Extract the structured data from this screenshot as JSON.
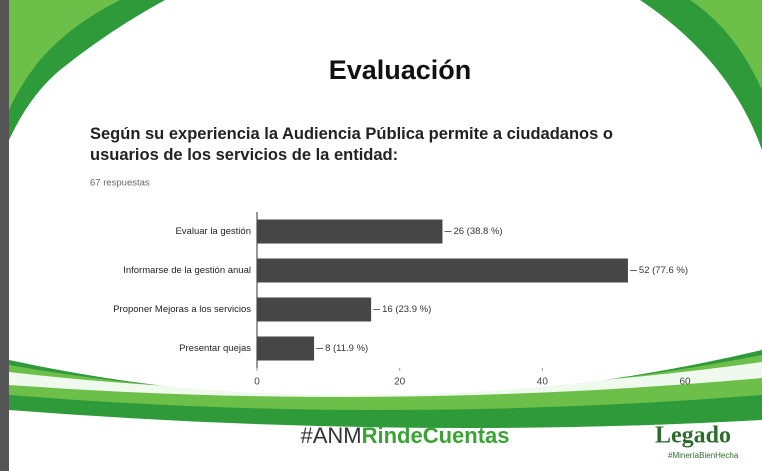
{
  "slide_title": "Evaluación",
  "question": "Según su experiencia la Audiencia Pública permite a ciudadanos o usuarios de los servicios de la entidad:",
  "responses": "67 respuestas",
  "chart_data": {
    "type": "hbar",
    "categories": [
      "Evaluar la gestión",
      "Informarse de la gestión anual",
      "Proponer Mejoras a los servicios",
      "Presentar quejas"
    ],
    "values": [
      26,
      52,
      16,
      8
    ],
    "value_labels": [
      "26 (38.8 %)",
      "52 (77.6 %)",
      "16 (23.9 %)",
      "8 (11.9 %)"
    ],
    "color": "#464646",
    "xlim": [
      0,
      60
    ],
    "xticks": [
      0,
      20,
      40,
      60
    ]
  },
  "footer": {
    "prefix": "#ANM",
    "highlight": "RindeCuentas"
  },
  "logo": {
    "name": "Legado",
    "tagline": "#MineríaBienHecha"
  }
}
